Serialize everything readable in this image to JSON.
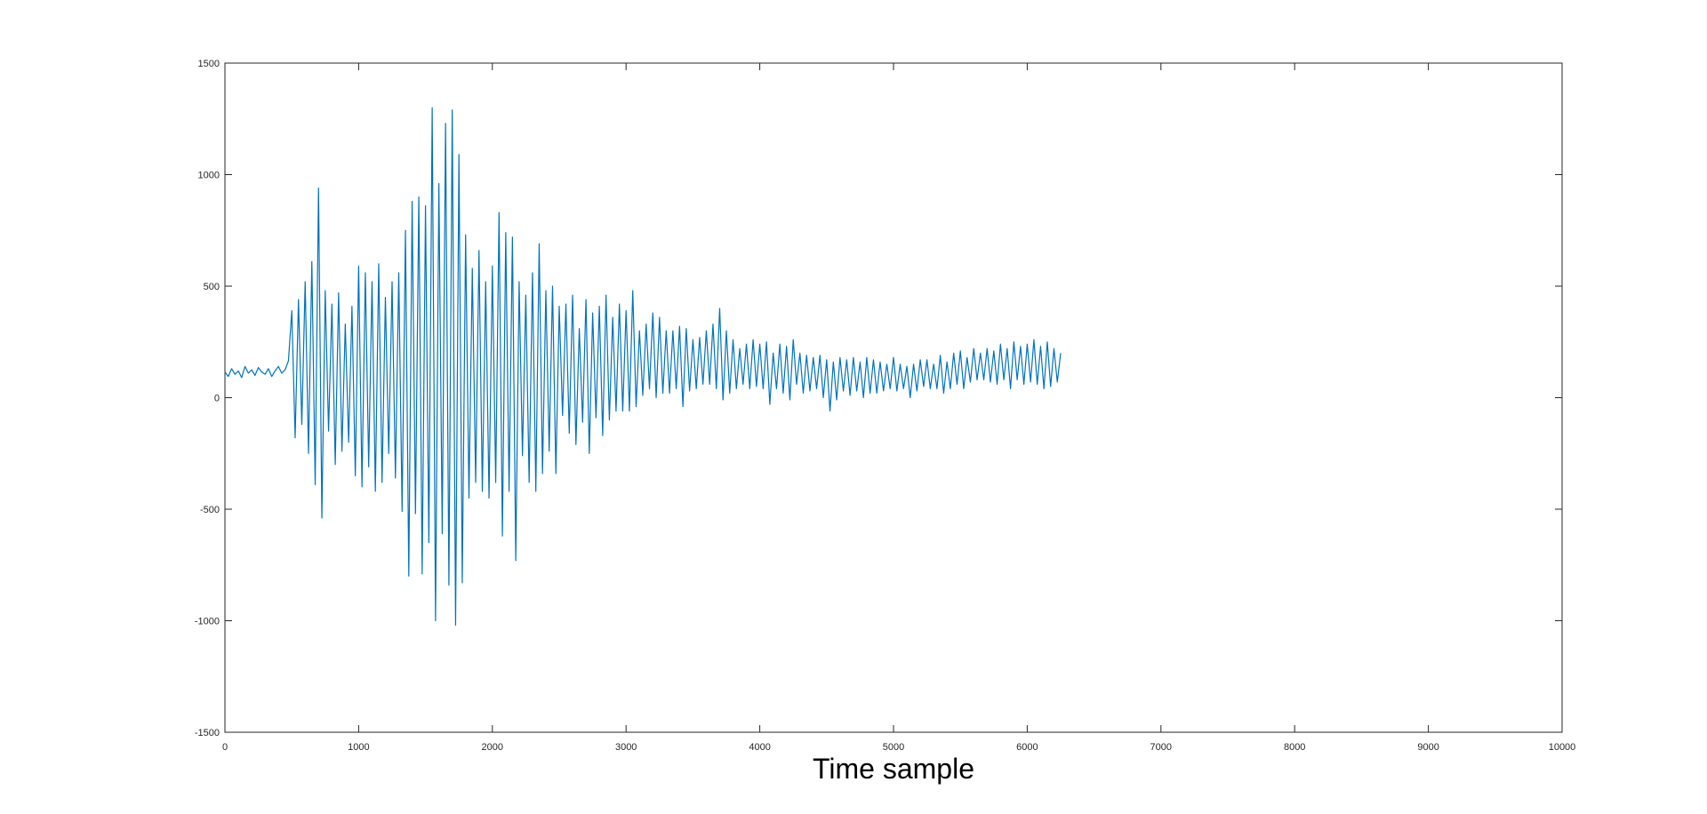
{
  "chart_data": {
    "type": "line",
    "title": "",
    "xlabel": "Time sample",
    "ylabel": "",
    "xlim": [
      0,
      10000
    ],
    "ylim": [
      -1500,
      1500
    ],
    "xticks": [
      0,
      1000,
      2000,
      3000,
      4000,
      5000,
      6000,
      7000,
      8000,
      9000,
      10000
    ],
    "yticks": [
      -1500,
      -1000,
      -500,
      0,
      500,
      1000,
      1500
    ],
    "xtick_labels": [
      "0",
      "1000",
      "2000",
      "3000",
      "4000",
      "5000",
      "6000",
      "7000",
      "8000",
      "9000",
      "10000"
    ],
    "ytick_labels": [
      "-1500",
      "-1000",
      "-500",
      "0",
      "500",
      "1000",
      "1500"
    ],
    "grid": false,
    "legend": "none",
    "colors": {
      "series": "#0072BD",
      "axes": "#262626",
      "background": "#ffffff"
    },
    "series": [
      {
        "sample_step": 25,
        "x_start": 0,
        "values": [
          115,
          95,
          130,
          105,
          120,
          90,
          140,
          110,
          125,
          100,
          135,
          115,
          105,
          130,
          95,
          120,
          140,
          110,
          125,
          165,
          390,
          -180,
          440,
          -120,
          520,
          -250,
          610,
          -390,
          940,
          -540,
          480,
          -150,
          420,
          -300,
          470,
          -240,
          330,
          -200,
          410,
          -350,
          590,
          -400,
          560,
          -310,
          520,
          -420,
          600,
          -380,
          450,
          -250,
          520,
          -360,
          560,
          -510,
          750,
          -800,
          880,
          -520,
          900,
          -790,
          860,
          -650,
          1300,
          -1000,
          960,
          -610,
          1230,
          -840,
          1290,
          -1020,
          1090,
          -830,
          730,
          -450,
          580,
          -380,
          660,
          -420,
          520,
          -450,
          590,
          -380,
          830,
          -620,
          740,
          -420,
          720,
          -730,
          520,
          -260,
          460,
          -380,
          560,
          -420,
          690,
          -340,
          480,
          -240,
          500,
          -340,
          410,
          -80,
          420,
          -160,
          460,
          -210,
          310,
          -110,
          440,
          -250,
          380,
          -90,
          410,
          -170,
          460,
          -100,
          360,
          -60,
          420,
          -60,
          390,
          -60,
          480,
          -40,
          300,
          10,
          330,
          40,
          380,
          0,
          360,
          20,
          300,
          20,
          300,
          40,
          320,
          -40,
          310,
          30,
          260,
          40,
          270,
          60,
          300,
          60,
          330,
          40,
          400,
          -10,
          300,
          20,
          260,
          40,
          220,
          60,
          240,
          40,
          260,
          50,
          240,
          40,
          250,
          -30,
          200,
          40,
          240,
          20,
          230,
          -10,
          260,
          60,
          200,
          20,
          190,
          30,
          180,
          40,
          190,
          0,
          170,
          -60,
          160,
          -10,
          180,
          30,
          170,
          10,
          180,
          30,
          160,
          0,
          180,
          20,
          170,
          20,
          160,
          30,
          150,
          40,
          180,
          30,
          150,
          40,
          140,
          0,
          150,
          30,
          170,
          50,
          170,
          40,
          150,
          40,
          190,
          20,
          160,
          40,
          200,
          60,
          210,
          40,
          180,
          70,
          220,
          80,
          200,
          80,
          220,
          70,
          210,
          60,
          240,
          80,
          220,
          40,
          250,
          80,
          230,
          60,
          240,
          70,
          260,
          60,
          230,
          40,
          250,
          50,
          220,
          70,
          200
        ]
      }
    ]
  }
}
